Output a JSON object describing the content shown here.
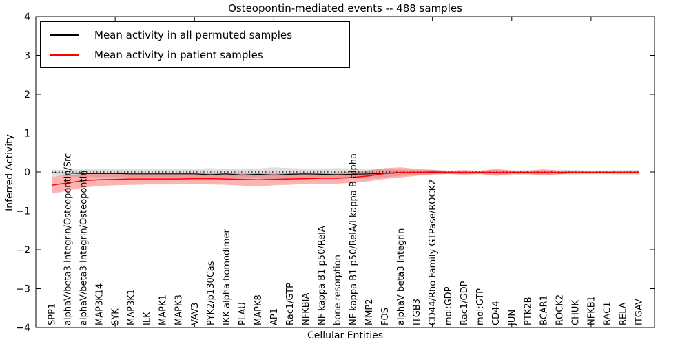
{
  "title": "Osteopontin-mediated events -- 488 samples",
  "axes": {
    "xlabel": "Cellular Entities",
    "ylabel": "Inferred Activity",
    "yticks": [
      4,
      3,
      2,
      1,
      0,
      -1,
      -2,
      -3,
      -4
    ],
    "ytick_labels": [
      "4",
      "3",
      "2",
      "1",
      "0",
      "−1",
      "−2",
      "−3",
      "−4"
    ],
    "ylim": [
      -4,
      4
    ],
    "x_major_ticks": [
      5,
      10,
      15,
      20,
      25,
      30,
      35
    ]
  },
  "legend": {
    "items": [
      {
        "label": "Mean activity in all permuted samples",
        "color": "#000000"
      },
      {
        "label": "Mean activity in patient samples",
        "color": "#ff0000"
      }
    ]
  },
  "chart_data": {
    "type": "line",
    "title": "Osteopontin-mediated events -- 488 samples",
    "xlabel": "Cellular Entities",
    "ylabel": "Inferred Activity",
    "ylim": [
      -4,
      4
    ],
    "grid": false,
    "legend_position": "upper left",
    "zero_reference_line": {
      "style": "dotted",
      "color": "#000000",
      "y": 0
    },
    "categories": [
      "SPP1",
      "alphaV/beta3 Integrin/Osteopontin/Src",
      "alphaV/beta3 Integrin/Osteopontin",
      "MAP3K14",
      "SYK",
      "MAP3K1",
      "ILK",
      "MAPK1",
      "MAPK3",
      "VAV3",
      "PYK2/p130Cas",
      "IKK alpha homodimer",
      "PLAU",
      "MAPK8",
      "AP1",
      "Rac1/GTP",
      "NFKBIA",
      "NF kappa B1 p50/RelA",
      "bone resorption",
      "NF kappa B1 p50/RelA/I kappa B alpha",
      "MMP2",
      "FOS",
      "alphaV beta3 Integrin",
      "ITGB3",
      "CD44/Rho Family GTPase/ROCK2",
      "mol:GDP",
      "Rac1/GDP",
      "mol:GTP",
      "CD44",
      "JUN",
      "PTK2B",
      "BCAR1",
      "ROCK2",
      "CHUK",
      "NFKB1",
      "RAC1",
      "RELA",
      "ITGAV"
    ],
    "series": [
      {
        "name": "Mean activity in all permuted samples",
        "color": "#000000",
        "line_width": 1.2,
        "band_color": "rgba(0,0,0,0.13)",
        "values": [
          -0.02,
          -0.03,
          -0.04,
          -0.04,
          -0.04,
          -0.05,
          -0.05,
          -0.05,
          -0.05,
          -0.05,
          -0.07,
          -0.05,
          -0.08,
          -0.06,
          -0.08,
          -0.06,
          -0.05,
          -0.06,
          -0.07,
          -0.06,
          -0.05,
          -0.04,
          -0.02,
          -0.02,
          -0.01,
          -0.01,
          -0.01,
          -0.01,
          -0.01,
          -0.01,
          -0.02,
          -0.01,
          -0.03,
          -0.02,
          -0.01,
          -0.01,
          -0.01,
          -0.01
        ],
        "band_upper": [
          0.06,
          0.06,
          0.07,
          0.07,
          0.07,
          0.07,
          0.07,
          0.07,
          0.08,
          0.08,
          0.1,
          0.08,
          0.09,
          0.09,
          0.12,
          0.1,
          0.09,
          0.09,
          0.1,
          0.09,
          0.08,
          0.07,
          0.06,
          0.05,
          0.05,
          0.04,
          0.04,
          0.04,
          0.05,
          0.04,
          0.05,
          0.04,
          0.06,
          0.05,
          0.04,
          0.04,
          0.05,
          0.05
        ],
        "band_lower": [
          -0.1,
          -0.11,
          -0.13,
          -0.13,
          -0.13,
          -0.14,
          -0.14,
          -0.14,
          -0.15,
          -0.15,
          -0.19,
          -0.15,
          -0.17,
          -0.16,
          -0.2,
          -0.17,
          -0.15,
          -0.16,
          -0.18,
          -0.16,
          -0.15,
          -0.13,
          -0.1,
          -0.08,
          -0.07,
          -0.06,
          -0.06,
          -0.06,
          -0.07,
          -0.06,
          -0.08,
          -0.06,
          -0.09,
          -0.07,
          -0.06,
          -0.06,
          -0.07,
          -0.07
        ]
      },
      {
        "name": "Mean activity in patient samples",
        "color": "#ff0000",
        "line_width": 1.5,
        "band_color": "rgba(255,0,0,0.30)",
        "values": [
          -0.34,
          -0.28,
          -0.22,
          -0.2,
          -0.19,
          -0.18,
          -0.18,
          -0.18,
          -0.18,
          -0.17,
          -0.17,
          -0.18,
          -0.19,
          -0.2,
          -0.19,
          -0.18,
          -0.17,
          -0.16,
          -0.16,
          -0.14,
          -0.1,
          -0.04,
          -0.01,
          -0.01,
          0.0,
          -0.01,
          -0.01,
          -0.01,
          -0.01,
          -0.01,
          -0.01,
          -0.01,
          -0.01,
          -0.01,
          -0.01,
          -0.01,
          -0.01,
          -0.01
        ],
        "band_upper": [
          -0.12,
          -0.08,
          -0.05,
          -0.04,
          -0.04,
          -0.04,
          -0.04,
          -0.04,
          -0.04,
          -0.03,
          -0.02,
          -0.03,
          -0.04,
          -0.04,
          -0.04,
          -0.03,
          -0.02,
          -0.02,
          -0.01,
          0.0,
          0.04,
          0.1,
          0.12,
          0.08,
          0.06,
          0.03,
          0.05,
          0.03,
          0.08,
          0.04,
          0.03,
          0.07,
          0.03,
          0.02,
          0.02,
          0.02,
          0.02,
          0.02
        ],
        "band_lower": [
          -0.56,
          -0.48,
          -0.4,
          -0.36,
          -0.34,
          -0.33,
          -0.32,
          -0.32,
          -0.32,
          -0.31,
          -0.32,
          -0.33,
          -0.35,
          -0.37,
          -0.34,
          -0.33,
          -0.31,
          -0.3,
          -0.3,
          -0.28,
          -0.24,
          -0.18,
          -0.14,
          -0.1,
          -0.06,
          -0.05,
          -0.07,
          -0.05,
          -0.1,
          -0.06,
          -0.05,
          -0.09,
          -0.05,
          -0.04,
          -0.04,
          -0.04,
          -0.04,
          -0.04
        ]
      }
    ]
  }
}
